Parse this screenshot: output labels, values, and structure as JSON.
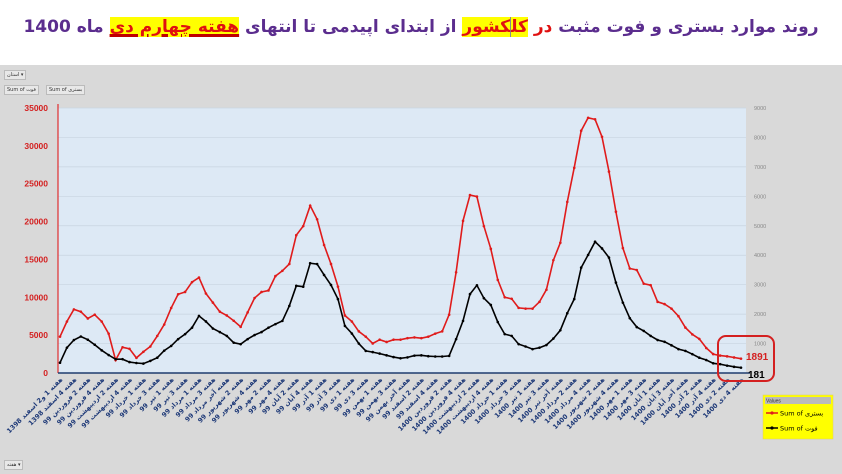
{
  "title": {
    "part1": "روند موارد بستری و فوت مثبت",
    "part2": "در",
    "part3": "کل",
    "part4": "کشور",
    "part5": "از ابتدای اپیدمی تا انتهای",
    "part6": "هفته چهارم دی",
    "part7": "ماه 1400"
  },
  "pivot": {
    "filter_label": "استان ▾",
    "field_buttons": [
      "Sum of فوت",
      "Sum of بستری"
    ],
    "axis_button": "هفته ▾"
  },
  "colors": {
    "hospitalized": "#e01b1b",
    "deaths": "#000000",
    "plot_bg": "#dde9f5",
    "legend_bg": "#ffff00",
    "title": "#5b2d8e"
  },
  "chart_data": {
    "type": "line",
    "title": "روند موارد بستری و فوت مثبت در کل کشور از ابتدای اپیدمی تا انتهای هفته چهارم دی ماه 1400",
    "left_axis": {
      "ylim": [
        0,
        35000
      ],
      "ticks": [
        "0",
        "5000",
        "10000",
        "15000",
        "20000",
        "25000",
        "30000",
        "35000"
      ]
    },
    "right_axis": {
      "ylim": [
        0,
        9000
      ],
      "ticks": [
        "1000",
        "2000",
        "3000",
        "4000",
        "5000",
        "6000",
        "7000",
        "8000",
        "9000"
      ]
    },
    "grid": true,
    "legend": {
      "position": "right",
      "header": "Values"
    },
    "x_labels": [
      "هفته 1 و2 اسفند 1398",
      "هفته 4 اسفند 1398",
      "هفته 2 فروردین 99",
      "هفته 4 فروردین 99",
      "هفته 2 اردیبهشت 99",
      "هفته 4 اردیبهشت 99",
      "هفته 1 خرداد 99",
      "هفته 3 خرداد 99",
      "هفته 1 تیر 99",
      "هفته 3 تیر 99",
      "هفته 1 مرداد 99",
      "هفته 3 مرداد 99",
      "هفته آخر مرداد 99",
      "هفته 2 شهریور 99",
      "هفته 4 شهریور 99",
      "هفته 2 مهر 99",
      "هفته 4 مهر 99",
      "هفته 2 آبان 99",
      "هفته 4 آبان 99",
      "هفته 1 آذر 99",
      "هفته 3 آذر 99",
      "هفته 1 دی 99",
      "هفته 3 دی 99",
      "هفته 1 بهمن 99",
      "هفته 3 بهمن 99",
      "هفته آخر بهمن 99",
      "هفته 2 اسفند 99",
      "هفته 4 اسفند 99",
      "هفته 2 فروردین 1400",
      "هفته 4 فروردین 1400",
      "هفته 2 اردیبهشت 1400",
      "هفته 4 اردیبهشت 1400",
      "هفته 1 خرداد 1400",
      "هفته 3 خرداد 1400",
      "هفته 1 تیر 1400",
      "هفته 3 تیر 1400",
      "هفته آخر تیر 1400",
      "هفته 2 مرداد 1400",
      "هفته 4 مرداد 1400",
      "هفته 2 شهریور 1400",
      "هفته 4 شهریور 1400",
      "هفته 1 مهر 1400",
      "هفته 3 مهر 1400",
      "هفته 1 آبان 1400",
      "هفته 3 آبان 1400",
      "هفته آخر آبان 1400",
      "هفته 2 آذر 1400",
      "هفته 4 آذر 1400",
      "هفته 2 دی 1400",
      "هفته 4 دی 1400"
    ],
    "series": [
      {
        "name": "Sum of بستری",
        "axis": "left",
        "values": [
          4800,
          6800,
          8400,
          8100,
          7200,
          7700,
          6800,
          5200,
          1700,
          3400,
          3200,
          2000,
          2800,
          3500,
          4900,
          6400,
          8600,
          10400,
          10700,
          12000,
          12600,
          10500,
          9300,
          8100,
          7600,
          6900,
          6100,
          8000,
          9900,
          10700,
          10900,
          12800,
          13500,
          14400,
          18200,
          19400,
          22100,
          20300,
          16900,
          14400,
          11400,
          7600,
          6800,
          5500,
          4800,
          3900,
          4400,
          4100,
          4400,
          4400,
          4600,
          4700,
          4600,
          4800,
          5200,
          5500,
          7700,
          13300,
          20100,
          23500,
          23300,
          19400,
          16400,
          12300,
          10000,
          9800,
          8600,
          8500,
          8500,
          9400,
          11000,
          14900,
          17200,
          22600,
          27100,
          32000,
          33700,
          33500,
          31200,
          26600,
          21300,
          16500,
          13800,
          13600,
          11800,
          11600,
          9400,
          9100,
          8500,
          7500,
          6000,
          5100,
          4500,
          3300,
          2500,
          2300,
          2200,
          2050,
          1891
        ]
      },
      {
        "name": "Sum of فوت",
        "axis": "right",
        "values": [
          350,
          860,
          1120,
          1240,
          1130,
          960,
          770,
          610,
          470,
          470,
          370,
          340,
          320,
          410,
          520,
          760,
          920,
          1150,
          1320,
          1540,
          1940,
          1750,
          1510,
          1390,
          1260,
          1030,
          980,
          1150,
          1290,
          1390,
          1540,
          1660,
          1770,
          2280,
          2960,
          2930,
          3730,
          3700,
          3330,
          2990,
          2510,
          1600,
          1340,
          1000,
          750,
          710,
          660,
          600,
          540,
          500,
          530,
          590,
          600,
          570,
          560,
          560,
          580,
          1150,
          1770,
          2680,
          2980,
          2540,
          2310,
          1730,
          1320,
          1260,
          980,
          900,
          810,
          860,
          950,
          1170,
          1450,
          2030,
          2510,
          3580,
          4010,
          4460,
          4230,
          3920,
          3070,
          2390,
          1860,
          1560,
          1430,
          1260,
          1120,
          1060,
          940,
          810,
          750,
          640,
          520,
          440,
          330,
          300,
          250,
          210,
          181
        ]
      }
    ],
    "annotations": [
      "1891",
      "181"
    ]
  }
}
